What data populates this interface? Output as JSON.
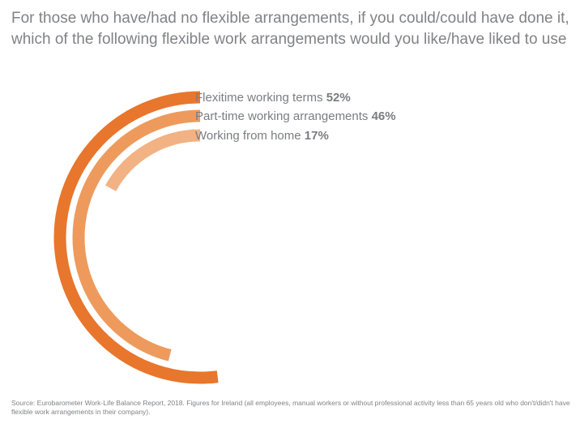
{
  "title_line1": "For those who have/had no flexible arrangements, if you could/could have done it,",
  "title_line2": "which of the following flexible work arrangements would you like/have liked to use",
  "source": "Source: Eurobarometer Work-Life Balance Report, 2018. Figures for Ireland (all employees, manual workers or without professional activity less than 65 years old who don't/didn't have flexible work arrangements in their company).",
  "chart_data": {
    "type": "radial bar",
    "unit": "%",
    "max": 100,
    "series": [
      {
        "name": "Flexitime working terms",
        "value": 52,
        "value_label": "52%",
        "color": "#e8762c"
      },
      {
        "name": "Part-time working arrangements",
        "value": 46,
        "value_label": "46%",
        "color": "#ee9a5c"
      },
      {
        "name": "Working from home",
        "value": 17,
        "value_label": "17%",
        "color": "#f2b283"
      }
    ]
  }
}
